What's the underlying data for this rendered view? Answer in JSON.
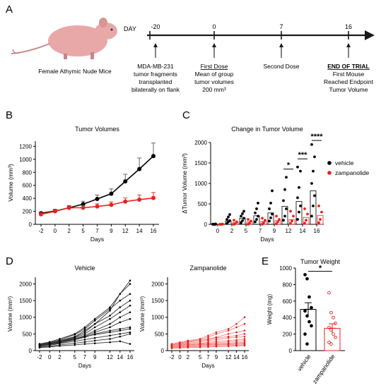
{
  "panels": {
    "A": "A",
    "B": "B",
    "C": "C",
    "D": "D",
    "E": "E"
  },
  "timeline": {
    "mouse_label": "Female Athymic Nude Mice",
    "day_label": "DAY",
    "days": [
      "-20",
      "0",
      "7",
      "16"
    ],
    "notes": [
      [
        "MDA-MB-231",
        "tumor fragments",
        "transplanted",
        "bilaterally on flank"
      ],
      [
        "First Dose",
        "Mean of group",
        "tumor volumes",
        "200 mm³"
      ],
      [
        "Second Dose"
      ],
      [
        "END OF TRIAL",
        "First Mouse",
        "Reached Endpoint",
        "Tumor Volume"
      ]
    ],
    "colors": {
      "line": "#1a1a1a",
      "mouse_body": "#e8a8a8",
      "mouse_dark": "#c98585"
    }
  },
  "colors": {
    "vehicle": "#000000",
    "zampanolide": "#e8211d",
    "zampanolide_light": "#f08a88",
    "error": "#888888"
  },
  "chart_data": [
    {
      "id": "B",
      "type": "line",
      "title": "Tumor Volumes",
      "xlabel": "Days",
      "ylabel": "Volume (mm³)",
      "x": [
        -2,
        0,
        2,
        5,
        7,
        9,
        12,
        14,
        16
      ],
      "xticks": [
        "-2",
        "0",
        "2",
        "5",
        "7",
        "9",
        "12",
        "14",
        "16"
      ],
      "yticks": [
        "0",
        "200",
        "400",
        "600",
        "800",
        "1000",
        "1200"
      ],
      "ylim": [
        0,
        1280
      ],
      "series": [
        {
          "name": "vehicle",
          "color": "#000000",
          "values": [
            170,
            205,
            255,
            310,
            390,
            470,
            660,
            850,
            1050
          ],
          "error": [
            20,
            25,
            35,
            45,
            60,
            75,
            110,
            170,
            200
          ]
        },
        {
          "name": "zampanolide",
          "color": "#e8211d",
          "values": [
            155,
            200,
            255,
            255,
            275,
            300,
            350,
            380,
            405
          ],
          "error": [
            20,
            25,
            30,
            35,
            40,
            45,
            55,
            70,
            85
          ]
        }
      ]
    },
    {
      "id": "C",
      "type": "scatter",
      "title": "Change in Tumor Volume",
      "xlabel": "Days",
      "ylabel": "ΔTumor Volume (mm³)",
      "categories": [
        "0",
        "2",
        "5",
        "7",
        "9",
        "12",
        "14",
        "16"
      ],
      "yticks": [
        "0",
        "500",
        "1000",
        "1500",
        "2000"
      ],
      "ylim": [
        0,
        2000
      ],
      "legend": [
        "vehicle",
        "zampanolide"
      ],
      "legend_position": "right",
      "significance": [
        {
          "category": "12",
          "label": "*"
        },
        {
          "category": "14",
          "label": "***"
        },
        {
          "category": "16",
          "label": "****"
        }
      ],
      "series": [
        {
          "name": "vehicle",
          "color": "#000000",
          "means": [
            0,
            80,
            150,
            210,
            280,
            440,
            560,
            820
          ],
          "points": [
            [
              -10,
              0,
              0,
              5,
              0,
              10
            ],
            [
              20,
              60,
              90,
              120,
              180,
              240
            ],
            [
              40,
              90,
              150,
              200,
              260,
              320
            ],
            [
              60,
              120,
              200,
              280,
              380,
              520
            ],
            [
              80,
              160,
              250,
              380,
              520,
              820
            ],
            [
              100,
              200,
              380,
              580,
              850,
              1150
            ],
            [
              120,
              300,
              450,
              650,
              900,
              1300,
              1400
            ],
            [
              200,
              450,
              700,
              1000,
              1300,
              1650,
              1950
            ]
          ]
        },
        {
          "name": "zampanolide",
          "color": "#e8211d",
          "means": [
            0,
            40,
            60,
            70,
            90,
            120,
            170,
            220
          ],
          "points": [
            [
              -5,
              0,
              5,
              0
            ],
            [
              0,
              20,
              60,
              100
            ],
            [
              0,
              30,
              80,
              120
            ],
            [
              0,
              40,
              100,
              150
            ],
            [
              10,
              60,
              120,
              200
            ],
            [
              20,
              80,
              200,
              320
            ],
            [
              30,
              100,
              250,
              380
            ],
            [
              40,
              120,
              300,
              450
            ]
          ]
        }
      ]
    },
    {
      "id": "D1",
      "type": "line",
      "title": "Vehicle",
      "xlabel": "Days",
      "ylabel": "Volume (mm³)",
      "x": [
        -2,
        0,
        2,
        5,
        7,
        9,
        12,
        14,
        16
      ],
      "xticks": [
        "-2",
        "0",
        "2",
        "5",
        "7",
        "9",
        "12",
        "14",
        "16"
      ],
      "yticks": [
        "0",
        "500",
        "1000",
        "1500",
        "2000"
      ],
      "ylim": [
        0,
        2200
      ],
      "series": [
        {
          "values": [
            150,
            200,
            280,
            400,
            550,
            800,
            1200,
            1700,
            2100
          ]
        },
        {
          "values": [
            200,
            260,
            350,
            500,
            700,
            950,
            1300,
            1700,
            2000
          ]
        },
        {
          "values": [
            180,
            240,
            320,
            480,
            650,
            900,
            1250,
            1500,
            1700
          ]
        },
        {
          "values": [
            160,
            220,
            300,
            420,
            600,
            800,
            1050,
            1300,
            1500
          ]
        },
        {
          "values": [
            170,
            210,
            280,
            380,
            500,
            700,
            950,
            1150,
            1350
          ]
        },
        {
          "values": [
            150,
            190,
            250,
            350,
            450,
            600,
            800,
            1000,
            1150
          ]
        },
        {
          "values": [
            140,
            180,
            230,
            320,
            420,
            550,
            700,
            850,
            950
          ]
        },
        {
          "values": [
            160,
            200,
            260,
            330,
            400,
            500,
            600,
            650,
            700
          ]
        },
        {
          "values": [
            200,
            230,
            280,
            350,
            420,
            480,
            550,
            600,
            650
          ]
        },
        {
          "values": [
            120,
            160,
            210,
            280,
            330,
            380,
            450,
            500,
            550
          ]
        },
        {
          "values": [
            100,
            130,
            170,
            220,
            260,
            300,
            350,
            420,
            500
          ]
        },
        {
          "values": [
            90,
            110,
            140,
            170,
            200,
            220,
            250,
            280,
            200
          ]
        }
      ]
    },
    {
      "id": "D2",
      "type": "line",
      "title": "Zampanolide",
      "xlabel": "Days",
      "ylabel": "Volume (mm³)",
      "x": [
        -2,
        0,
        2,
        5,
        7,
        9,
        12,
        14,
        16
      ],
      "xticks": [
        "-2",
        "0",
        "2",
        "5",
        "7",
        "9",
        "12",
        "14",
        "16"
      ],
      "yticks": [
        "0",
        "500",
        "1000",
        "1500",
        "2000"
      ],
      "ylim": [
        0,
        2200
      ],
      "series": [
        {
          "values": [
            200,
            250,
            300,
            350,
            450,
            550,
            650,
            800,
            1000
          ]
        },
        {
          "values": [
            180,
            230,
            280,
            330,
            400,
            500,
            600,
            700,
            800
          ]
        },
        {
          "values": [
            150,
            200,
            260,
            300,
            350,
            400,
            500,
            550,
            600
          ]
        },
        {
          "values": [
            170,
            210,
            250,
            300,
            330,
            380,
            420,
            450,
            500
          ]
        },
        {
          "values": [
            160,
            190,
            220,
            260,
            300,
            330,
            380,
            400,
            420
          ]
        },
        {
          "values": [
            150,
            180,
            200,
            220,
            250,
            280,
            300,
            320,
            350
          ]
        },
        {
          "values": [
            130,
            160,
            180,
            200,
            220,
            240,
            260,
            280,
            300
          ]
        },
        {
          "values": [
            120,
            150,
            170,
            190,
            200,
            210,
            220,
            240,
            250
          ]
        },
        {
          "values": [
            100,
            130,
            150,
            170,
            180,
            190,
            200,
            210,
            220
          ]
        },
        {
          "values": [
            90,
            110,
            130,
            150,
            160,
            170,
            180,
            190,
            200
          ]
        },
        {
          "values": [
            80,
            100,
            110,
            120,
            130,
            140,
            150,
            160,
            170
          ]
        },
        {
          "values": [
            70,
            80,
            90,
            100,
            110,
            120,
            130,
            140,
            150
          ]
        }
      ]
    },
    {
      "id": "E",
      "type": "bar",
      "title": "Tumor Weight",
      "ylabel": "Weight (mg)",
      "categories": [
        "vehicle",
        "zampanolide"
      ],
      "values": [
        500,
        270
      ],
      "errors": [
        80,
        55
      ],
      "yticks": [
        "0",
        "200",
        "400",
        "600",
        "800",
        "1000"
      ],
      "ylim": [
        0,
        1000
      ],
      "significance": "*",
      "points": [
        [
          920,
          870,
          650,
          520,
          480,
          420,
          350,
          300,
          200,
          80
        ],
        [
          700,
          460,
          400,
          330,
          280,
          250,
          200,
          160,
          100,
          80
        ]
      ]
    }
  ]
}
